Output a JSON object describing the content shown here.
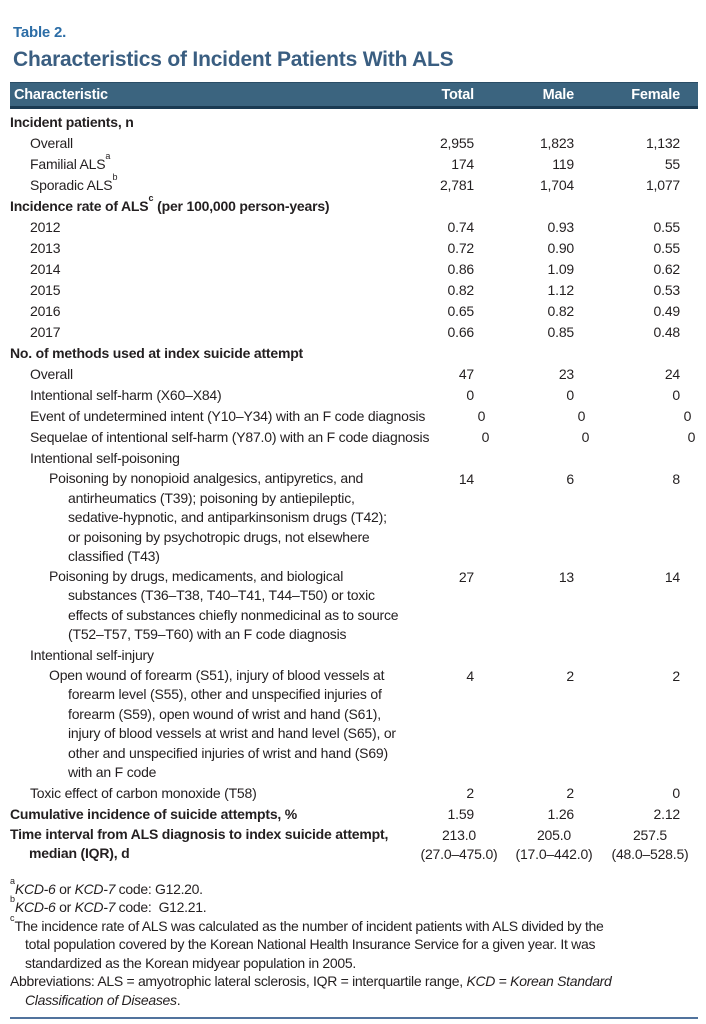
{
  "table_label": "Table 2.",
  "title": "Characteristics of Incident Patients With ALS",
  "columns": [
    "Characteristic",
    "Total",
    "Male",
    "Female"
  ],
  "colors": {
    "header_bg": "#3b647f",
    "header_text": "#ffffff",
    "title_color": "#3a5e81",
    "table_label_color": "#2c6da6",
    "bottom_rule_color": "#51739d",
    "body_text_color": "#231f20"
  },
  "rows": [
    {
      "label": "Incident patients, n",
      "style": "section"
    },
    {
      "label": "Overall",
      "indent": 1,
      "values": [
        "2,955",
        "1,823",
        "1,132"
      ]
    },
    {
      "label": "Familial ALS",
      "sup": "a",
      "indent": 1,
      "values": [
        "174",
        "119",
        "55"
      ]
    },
    {
      "label": "Sporadic ALS",
      "sup": "b",
      "indent": 1,
      "values": [
        "2,781",
        "1,704",
        "1,077"
      ]
    },
    {
      "label": "Incidence rate of ALS",
      "sup": "c",
      "tail": " (per 100,000 person-years)",
      "style": "section"
    },
    {
      "label": "2012",
      "indent": 1,
      "values": [
        "0.74",
        "0.93",
        "0.55"
      ]
    },
    {
      "label": "2013",
      "indent": 1,
      "values": [
        "0.72",
        "0.90",
        "0.55"
      ]
    },
    {
      "label": "2014",
      "indent": 1,
      "values": [
        "0.86",
        "1.09",
        "0.62"
      ]
    },
    {
      "label": "2015",
      "indent": 1,
      "values": [
        "0.82",
        "1.12",
        "0.53"
      ]
    },
    {
      "label": "2016",
      "indent": 1,
      "values": [
        "0.65",
        "0.82",
        "0.49"
      ]
    },
    {
      "label": "2017",
      "indent": 1,
      "values": [
        "0.66",
        "0.85",
        "0.48"
      ]
    },
    {
      "label": "No. of methods used at index suicide attempt",
      "style": "section"
    },
    {
      "label": "Overall",
      "indent": 1,
      "values": [
        "47",
        "23",
        "24"
      ]
    },
    {
      "label": "Intentional self-harm (X60–X84)",
      "indent": 1,
      "values": [
        "0",
        "0",
        "0"
      ]
    },
    {
      "label": "Event of undetermined intent (Y10–Y34) with an F code diagnosis",
      "indent": 1,
      "values": [
        "0",
        "0",
        "0"
      ]
    },
    {
      "label": "Sequelae of intentional self-harm (Y87.0) with an F code diagnosis",
      "indent": 1,
      "values": [
        "0",
        "0",
        "0"
      ]
    },
    {
      "label": "Intentional self-poisoning",
      "indent": 1
    },
    {
      "lines": [
        "Poisoning by nonopioid analgesics, antipyretics, and",
        "antirheumatics (T39); poisoning by antiepileptic,",
        "sedative-hypnotic, and antiparkinsonism drugs (T42);",
        "or poisoning by psychotropic drugs, not elsewhere",
        "classified (T43)"
      ],
      "indent": 2,
      "values": [
        "14",
        "6",
        "8"
      ]
    },
    {
      "lines": [
        "Poisoning by drugs, medicaments, and biological",
        "substances (T36–T38, T40–T41, T44–T50) or toxic",
        "effects of substances chiefly nonmedicinal as to source",
        "(T52–T57, T59–T60) with an F code diagnosis"
      ],
      "indent": 2,
      "values": [
        "27",
        "13",
        "14"
      ]
    },
    {
      "label": "Intentional self-injury",
      "indent": 1
    },
    {
      "lines": [
        "Open wound of forearm (S51), injury of blood vessels at",
        "forearm level (S55), other and unspecified injuries of",
        "forearm (S59), open wound of wrist and hand (S61),",
        "injury of blood vessels at wrist and hand level (S65), or",
        "other and unspecified injuries of wrist and hand (S69)",
        "with an F code"
      ],
      "indent": 2,
      "values": [
        "4",
        "2",
        "2"
      ]
    },
    {
      "label": "Toxic effect of carbon monoxide (T58)",
      "indent": 1,
      "values": [
        "2",
        "2",
        "0"
      ]
    },
    {
      "label": "Cumulative incidence of suicide attempts, %",
      "style": "section",
      "values": [
        "1.59",
        "1.26",
        "2.12"
      ]
    },
    {
      "lines": [
        "Time interval from ALS diagnosis to index suicide attempt,",
        "median (IQR), d"
      ],
      "style": "section",
      "value_style": "iqr",
      "values": [
        "213.0\n(27.0–475.0)",
        "205.0\n(17.0–442.0)",
        "257.5\n(48.0–528.5)"
      ]
    }
  ],
  "footnotes": [
    {
      "parts": [
        {
          "sup": "a"
        },
        {
          "t": "KCD-6",
          "i": true
        },
        {
          "t": " or "
        },
        {
          "t": "KCD-7",
          "i": true
        },
        {
          "t": " code: G12.20."
        }
      ]
    },
    {
      "parts": [
        {
          "sup": "b"
        },
        {
          "t": "KCD-6",
          "i": true
        },
        {
          "t": " or "
        },
        {
          "t": "KCD-7",
          "i": true
        },
        {
          "t": " code:  G12.21."
        }
      ]
    },
    {
      "parts": [
        {
          "sup": "c"
        },
        {
          "t": "The incidence rate of ALS was calculated as the number of incident patients with ALS divided by the\ntotal population covered by the Korean National Health Insurance Service for a given year. It was\nstandardized as the Korean midyear population in 2005."
        }
      ]
    },
    {
      "parts": [
        {
          "t": "Abbreviations: ALS = amyotrophic lateral sclerosis, IQR = interquartile range, "
        },
        {
          "t": "KCD",
          "i": true
        },
        {
          "t": " = "
        },
        {
          "t": "Korean Standard\nClassification of Diseases",
          "i": true
        },
        {
          "t": "."
        }
      ]
    }
  ]
}
